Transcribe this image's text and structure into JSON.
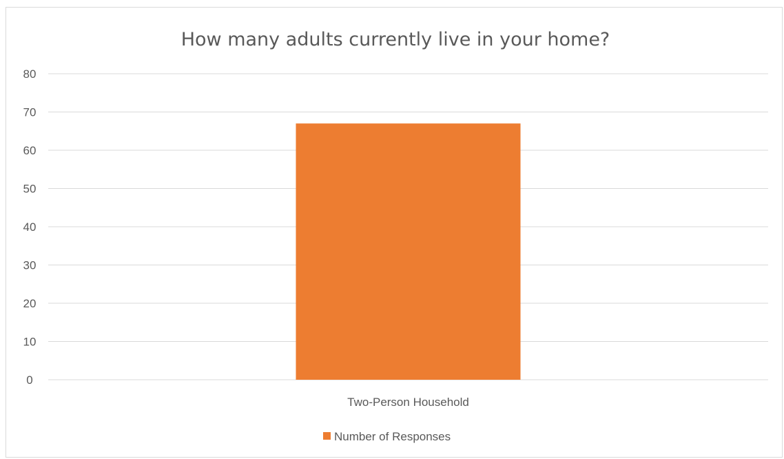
{
  "chart_data": {
    "type": "bar",
    "title": "How many adults currently live in your home?",
    "xlabel": "",
    "ylabel": "",
    "categories": [
      "Two-Person Household"
    ],
    "series": [
      {
        "name": "Number of Responses",
        "values": [
          67
        ],
        "color": "#ED7D31"
      }
    ],
    "ylim": [
      0,
      80
    ],
    "yticks": [
      "0",
      "10",
      "20",
      "30",
      "40",
      "50",
      "60",
      "70",
      "80"
    ],
    "grid": true,
    "legend_position": "bottom",
    "colors": {
      "bar": "#ED7D31",
      "gridline": "#d9d9d9",
      "text": "#595959",
      "border": "#d9d9d9"
    }
  }
}
